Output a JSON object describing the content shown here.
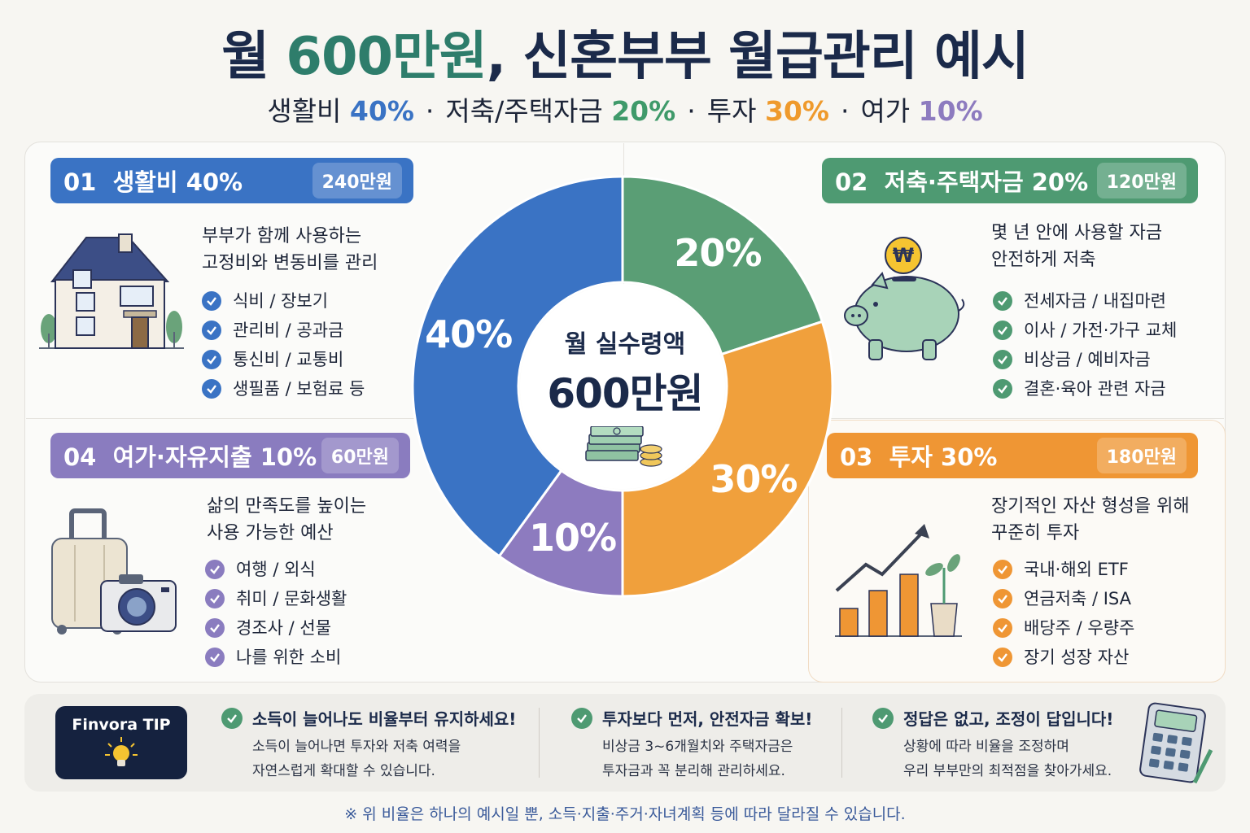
{
  "header": {
    "title_prefix": "월 ",
    "title_accent": "600만원",
    "title_suffix": ", 신혼부부 월급관리 예시",
    "subtitle": {
      "living_label": "생활비",
      "living_pct": "40%",
      "saving_label": "저축/주택자금",
      "saving_pct": "20%",
      "invest_label": "투자",
      "invest_pct": "30%",
      "leisure_label": "여가",
      "leisure_pct": "10%",
      "separator": "·"
    }
  },
  "center": {
    "label": "월 실수령액",
    "amount": "600만원"
  },
  "chart_data": {
    "type": "pie",
    "donut": true,
    "categories": [
      "생활비",
      "저축·주택자금",
      "투자",
      "여가·자유지출"
    ],
    "values": [
      40,
      20,
      30,
      10
    ],
    "labels": [
      "40%",
      "20%",
      "30%",
      "10%"
    ],
    "colors": [
      "#3a73c4",
      "#5a9e75",
      "#f0a03c",
      "#8d7bbf"
    ]
  },
  "cards": {
    "living": {
      "number": "01",
      "title": "생활비 40%",
      "amount": "240만원",
      "desc": [
        "부부가 함께 사용하는",
        "고정비와 변동비를 관리"
      ],
      "items": [
        "식비 / 장보기",
        "관리비 / 공과금",
        "통신비 / 교통비",
        "생필품 / 보험료 등"
      ],
      "icon": "house-icon",
      "color": "#3a73c4"
    },
    "saving": {
      "number": "02",
      "title": "저축·주택자금 20%",
      "amount": "120만원",
      "desc": [
        "몇 년 안에 사용할 자금",
        "안전하게 저축"
      ],
      "items": [
        "전세자금 / 내집마련",
        "이사 / 가전·가구 교체",
        "비상금 / 예비자금",
        "결혼·육아 관련 자금"
      ],
      "icon": "piggy-bank-icon",
      "coin_symbol": "₩",
      "color": "#4e9a72"
    },
    "invest": {
      "number": "03",
      "title": "투자 30%",
      "amount": "180만원",
      "desc": [
        "장기적인 자산 형성을 위해",
        "꾸준히 투자"
      ],
      "items": [
        "국내·해외 ETF",
        "연금저축 / ISA",
        "배당주 / 우량주",
        "장기 성장 자산"
      ],
      "icon": "growth-chart-icon",
      "color": "#ef9634"
    },
    "leisure": {
      "number": "04",
      "title": "여가·자유지출 10%",
      "amount": "60만원",
      "desc": [
        "삶의 만족도를 높이는",
        "사용 가능한 예산"
      ],
      "items": [
        "여행 / 외식",
        "취미 / 문화생활",
        "경조사 / 선물",
        "나를 위한 소비"
      ],
      "icon": "suitcase-camera-icon",
      "color": "#8a7cbf"
    }
  },
  "tips": {
    "badge": "Finvora TIP",
    "badge_icon": "lightbulb-icon",
    "list": [
      {
        "head": "소득이 늘어나도 비율부터 유지하세요!",
        "body": [
          "소득이 늘어나면 투자와 저축 여력을",
          "자연스럽게 확대할 수 있습니다."
        ]
      },
      {
        "head": "투자보다 먼저, 안전자금 확보!",
        "body": [
          "비상금 3~6개월치와 주택자금은",
          "투자금과 꼭 분리해 관리하세요."
        ]
      },
      {
        "head": "정답은 없고, 조정이 답입니다!",
        "body": [
          "상황에 따라 비율을 조정하며",
          "우리 부부만의 최적점을 찾아가세요."
        ]
      }
    ],
    "calculator_icon": "calculator-icon"
  },
  "footnote": "※ 위 비율은 하나의 예시일 뿐, 소득·지출·주거·자녀계획 등에 따라 달라질 수 있습니다."
}
